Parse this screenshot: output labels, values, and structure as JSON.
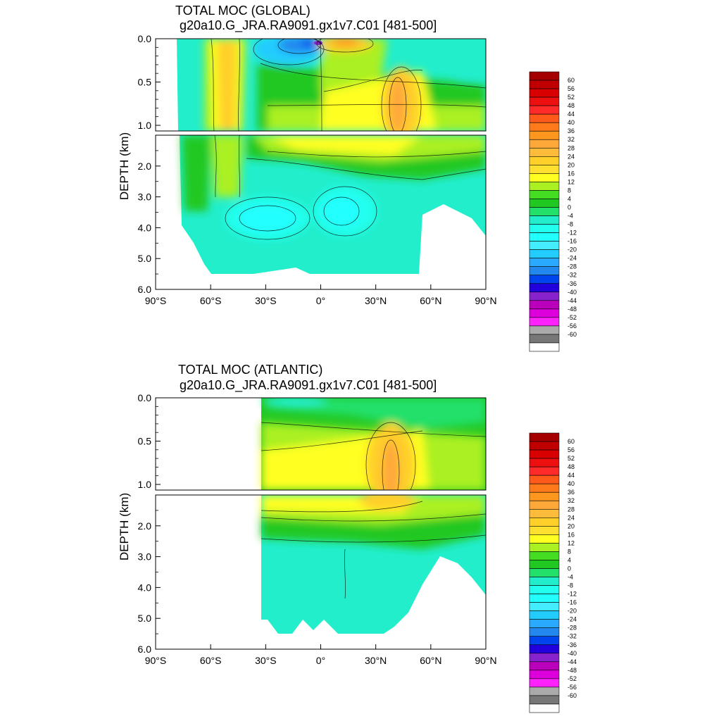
{
  "panels": [
    {
      "id": "global",
      "title": "TOTAL MOC (GLOBAL)",
      "subtitle": "g20a10.G_JRA.RA9091.gx1v7.C01 [481-500]",
      "ylabel": "DEPTH (km)"
    },
    {
      "id": "atlantic",
      "title": "TOTAL MOC (ATLANTIC)",
      "subtitle": "g20a10.G_JRA.RA9091.gx1v7.C01 [481-500]",
      "ylabel": "DEPTH (km)"
    }
  ],
  "axes": {
    "x_ticks": [
      "90°S",
      "60°S",
      "30°S",
      "0°",
      "30°N",
      "60°N",
      "90°N"
    ],
    "y_ticks_top": [
      "0.0",
      "0.5",
      "1.0"
    ],
    "y_ticks_bottom": [
      "2.0",
      "3.0",
      "4.0",
      "5.0",
      "6.0"
    ]
  },
  "colorbar": {
    "labels": [
      "60",
      "56",
      "52",
      "48",
      "44",
      "40",
      "36",
      "32",
      "28",
      "24",
      "20",
      "16",
      "12",
      "8",
      "4",
      "0",
      "-4",
      "-8",
      "-12",
      "-16",
      "-20",
      "-24",
      "-28",
      "-32",
      "-36",
      "-40",
      "-44",
      "-48",
      "-52",
      "-56",
      "-60"
    ],
    "colors": [
      "#a50000",
      "#c00000",
      "#d80000",
      "#ee1010",
      "#ff2a2a",
      "#ff5a1a",
      "#ff7a1a",
      "#ff961e",
      "#ffa83a",
      "#ffbb3a",
      "#ffcf2a",
      "#ffe030",
      "#ffff22",
      "#aaf022",
      "#44dd22",
      "#22c822",
      "#22e06a",
      "#22eecc",
      "#22ffee",
      "#22ffff",
      "#44ecff",
      "#22ccff",
      "#2aaaff",
      "#2288ee",
      "#0044ee",
      "#2200dd",
      "#8822cc",
      "#bb00bb",
      "#dd00dd",
      "#ff22ff",
      "#aaaaaa",
      "#777777",
      "#ffffff"
    ]
  },
  "chart_data": [
    {
      "type": "heatmap",
      "title": "TOTAL MOC (GLOBAL)",
      "subtitle": "g20a10.G_JRA.RA9091.gx1v7.C01 [481-500]",
      "xlabel": "",
      "ylabel": "DEPTH (km)",
      "xlim": [
        -90,
        90
      ],
      "ylim": [
        6.0,
        0.0
      ],
      "y_axis_break_km": 1.0,
      "data_extent_lat": [
        -78,
        90
      ],
      "contour_levels": [
        -60,
        60,
        4
      ],
      "features": [
        {
          "lat": -49,
          "depth_km": 0.6,
          "value": 20
        },
        {
          "lat": -8,
          "depth_km": 0.05,
          "value": -36
        },
        {
          "lat": 12,
          "depth_km": 0.05,
          "value": 32
        },
        {
          "lat": 40,
          "depth_km": 0.8,
          "value": 24
        },
        {
          "lat": 20,
          "depth_km": 1.3,
          "value": 16
        },
        {
          "lat": -30,
          "depth_km": 3.7,
          "value": -8
        },
        {
          "lat": 10,
          "depth_km": 3.6,
          "value": -8
        }
      ]
    },
    {
      "type": "heatmap",
      "title": "TOTAL MOC (ATLANTIC)",
      "subtitle": "g20a10.G_JRA.RA9091.gx1v7.C01 [481-500]",
      "xlabel": "",
      "ylabel": "DEPTH (km)",
      "xlim": [
        -90,
        90
      ],
      "ylim": [
        6.0,
        0.0
      ],
      "y_axis_break_km": 1.0,
      "data_extent_lat": [
        -34,
        90
      ],
      "contour_levels": [
        -60,
        60,
        4
      ],
      "features": [
        {
          "lat": 40,
          "depth_km": 0.8,
          "value": 24
        },
        {
          "lat": 10,
          "depth_km": 0.8,
          "value": 16
        },
        {
          "lat": 0,
          "depth_km": 0.05,
          "value": -4
        },
        {
          "lat": 10,
          "depth_km": 4.0,
          "value": -4
        }
      ]
    }
  ]
}
